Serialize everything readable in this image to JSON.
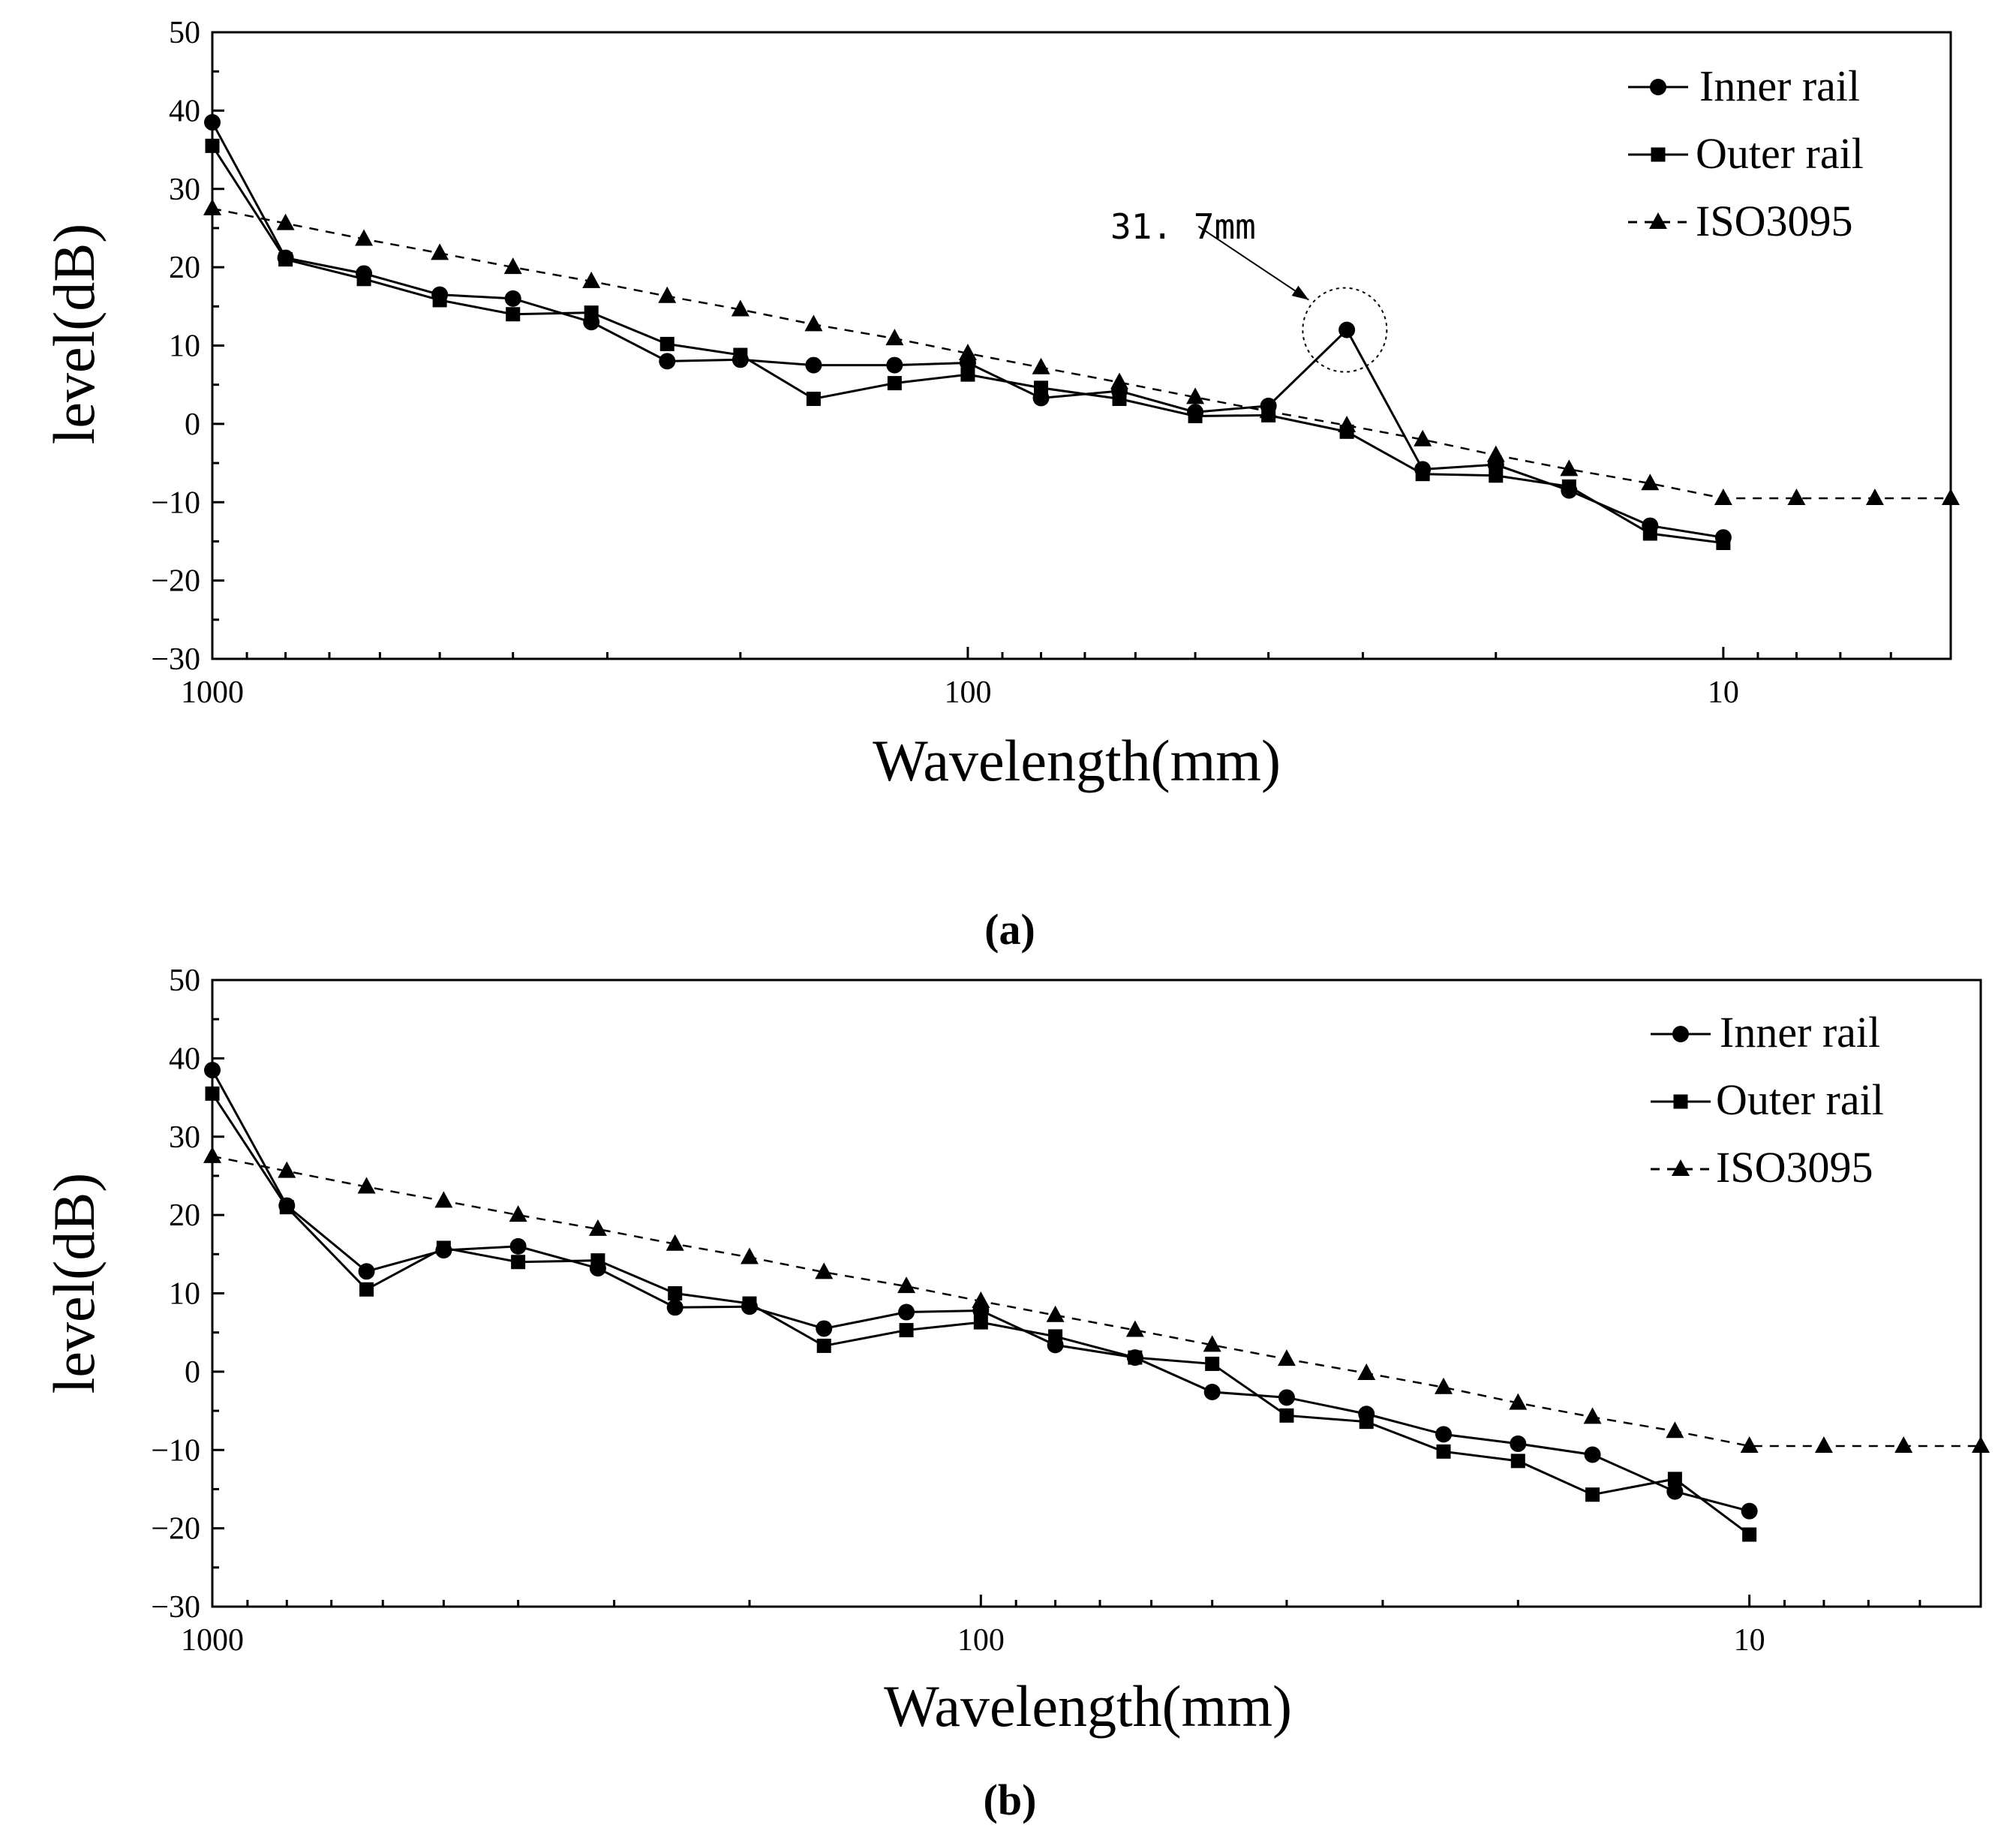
{
  "colors": {
    "line": "#000000",
    "background": "#ffffff"
  },
  "chart_data": [
    {
      "type": "line",
      "caption": "(a)",
      "xlabel": "Wavelength(mm)",
      "ylabel": "level(dB)",
      "xscale": "log-reversed",
      "xlim": [
        1000,
        5
      ],
      "ylim": [
        -30,
        50
      ],
      "xticks": [
        1000,
        100,
        10
      ],
      "xtick_labels": [
        "1000",
        "100",
        "10"
      ],
      "yticks": [
        -30,
        -20,
        -10,
        0,
        10,
        20,
        30,
        40,
        50
      ],
      "ytick_labels": [
        "-30",
        "-20",
        "-10",
        "0",
        "10",
        "20",
        "30",
        "40",
        "50"
      ],
      "legend_position": "top-right",
      "annotation": {
        "text": "31. 7mm",
        "x": 31.7,
        "y": 12
      },
      "series": [
        {
          "name": "Inner rail",
          "marker": "circle",
          "dash": "solid",
          "x": [
            1000,
            800,
            630,
            500,
            400,
            315,
            250,
            200,
            160,
            125,
            100,
            80,
            63,
            50,
            40,
            31.5,
            25,
            20,
            16,
            12.5,
            10
          ],
          "values": [
            38.5,
            21.2,
            19.2,
            16.5,
            16,
            13,
            8,
            8.2,
            7.5,
            7.5,
            7.8,
            3.3,
            4.2,
            1.5,
            2.3,
            12,
            -5.8,
            -5.2,
            -8.5,
            -13,
            -14.5
          ]
        },
        {
          "name": "Outer rail",
          "marker": "square",
          "dash": "solid",
          "x": [
            1000,
            800,
            630,
            500,
            400,
            315,
            250,
            200,
            160,
            125,
            100,
            80,
            63,
            50,
            40,
            31.5,
            25,
            20,
            16,
            12.5,
            10
          ],
          "values": [
            35.5,
            21,
            18.5,
            15.8,
            14,
            14.2,
            10.2,
            8.8,
            3.2,
            5.2,
            6.3,
            4.6,
            3.2,
            1,
            1.1,
            -1,
            -6.4,
            -6.6,
            -8,
            -14,
            -15.2
          ]
        },
        {
          "name": "ISO3095",
          "marker": "triangle",
          "dash": "dashed",
          "x": [
            1000,
            800,
            630,
            500,
            400,
            315,
            250,
            200,
            160,
            125,
            100,
            80,
            63,
            50,
            40,
            31.5,
            25,
            20,
            16,
            12.5,
            10,
            8,
            6.3,
            5
          ],
          "values": [
            27.5,
            25.6,
            23.6,
            21.8,
            20,
            18.2,
            16.3,
            14.6,
            12.7,
            10.9,
            9,
            7.2,
            5.3,
            3.4,
            1.6,
            -0.2,
            -2,
            -4,
            -5.8,
            -7.6,
            -9.5,
            -9.5,
            -9.5,
            -9.5
          ]
        }
      ]
    },
    {
      "type": "line",
      "caption": "(b)",
      "xlabel": "Wavelength(mm)",
      "ylabel": "level(dB)",
      "xscale": "log-reversed",
      "xlim": [
        1000,
        5
      ],
      "ylim": [
        -30,
        50
      ],
      "xticks": [
        1000,
        100,
        10
      ],
      "xtick_labels": [
        "1000",
        "100",
        "10"
      ],
      "yticks": [
        -30,
        -20,
        -10,
        0,
        10,
        20,
        30,
        40,
        50
      ],
      "ytick_labels": [
        "-30",
        "-20",
        "-10",
        "0",
        "10",
        "20",
        "30",
        "40",
        "50"
      ],
      "legend_position": "top-right",
      "series": [
        {
          "name": "Inner rail",
          "marker": "circle",
          "dash": "solid",
          "x": [
            1000,
            800,
            630,
            500,
            400,
            315,
            250,
            200,
            160,
            125,
            100,
            80,
            63,
            50,
            40,
            31.5,
            25,
            20,
            16,
            12.5,
            10
          ],
          "values": [
            38.5,
            21.2,
            12.8,
            15.5,
            16,
            13.2,
            8.2,
            8.3,
            5.5,
            7.6,
            7.8,
            3.4,
            1.8,
            -2.6,
            -3.3,
            -5.4,
            -8,
            -9.2,
            -10.6,
            -15.3,
            -17.8
          ]
        },
        {
          "name": "Outer rail",
          "marker": "square",
          "dash": "solid",
          "x": [
            1000,
            800,
            630,
            500,
            400,
            315,
            250,
            200,
            160,
            125,
            100,
            80,
            63,
            50,
            40,
            31.5,
            25,
            20,
            16,
            12.5,
            10
          ],
          "values": [
            35.5,
            21,
            10.5,
            15.8,
            14,
            14.2,
            10,
            8.7,
            3.3,
            5.3,
            6.3,
            4.5,
            1.8,
            1,
            -5.6,
            -6.4,
            -10.2,
            -11.4,
            -15.7,
            -13.7,
            -20.8
          ]
        },
        {
          "name": "ISO3095",
          "marker": "triangle",
          "dash": "dashed",
          "x": [
            1000,
            800,
            630,
            500,
            400,
            315,
            250,
            200,
            160,
            125,
            100,
            80,
            63,
            50,
            40,
            31.5,
            25,
            20,
            16,
            12.5,
            10,
            8,
            6.3,
            5
          ],
          "values": [
            27.5,
            25.6,
            23.6,
            21.8,
            20,
            18.2,
            16.3,
            14.6,
            12.7,
            10.9,
            9,
            7.2,
            5.3,
            3.4,
            1.6,
            -0.2,
            -2,
            -4,
            -5.8,
            -7.6,
            -9.5,
            -9.5,
            -9.5,
            -9.5
          ]
        }
      ]
    }
  ]
}
